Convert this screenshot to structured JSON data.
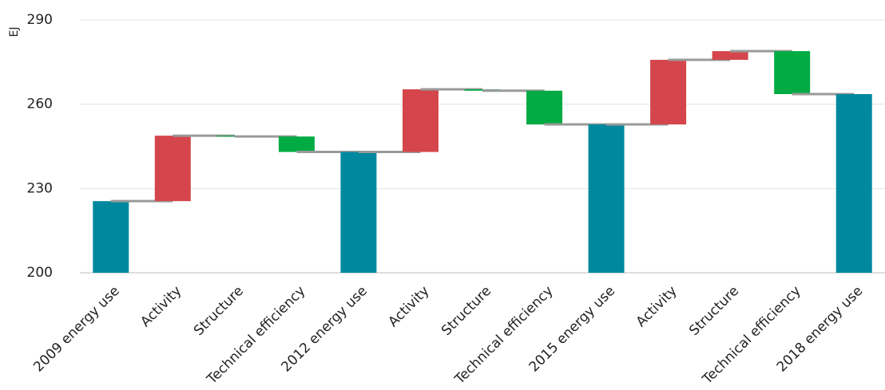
{
  "chart_data": {
    "type": "waterfall",
    "y_label": "EJ",
    "categories": [
      "2009 energy use",
      "Activity",
      "Structure",
      "Technical efficiency",
      "2012 energy use",
      "Activity",
      "Structure",
      "Technical efficiency",
      "2015 energy use",
      "Activity",
      "Structure",
      "Technical efficiency",
      "2018 energy use"
    ],
    "measure": [
      "absolute",
      "relative",
      "relative",
      "relative",
      "absolute",
      "relative",
      "relative",
      "relative",
      "absolute",
      "relative",
      "relative",
      "relative",
      "absolute"
    ],
    "values": [
      225.5,
      23.3,
      -0.3,
      -5.5,
      243.0,
      22.3,
      -0.5,
      -12.0,
      252.8,
      23.0,
      3.1,
      -15.3,
      263.6
    ],
    "colors": {
      "total": "#00899e",
      "increase": "#d4464b",
      "decrease": "#00ab44"
    },
    "connector_color": "#9a9a9a",
    "ylim": [
      200,
      290
    ],
    "yticks": [
      200,
      230,
      260,
      290
    ],
    "grid": true
  }
}
